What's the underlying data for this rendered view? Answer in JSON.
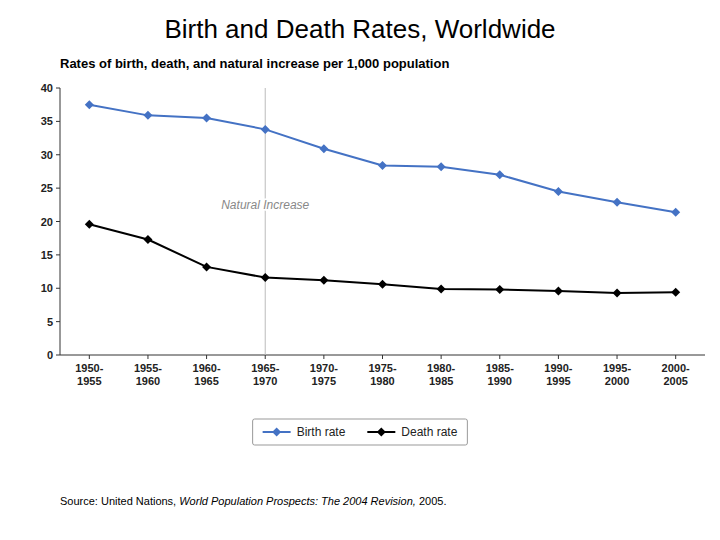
{
  "chart_data": {
    "type": "line",
    "title": "Birth and Death Rates, Worldwide",
    "subtitle": "Rates of birth, death, and natural increase per 1,000 population",
    "source": [
      "Source: United Nations, ",
      "World Population Prospects: The 2004 Revision,",
      " 2005."
    ],
    "categories": [
      "1950-\n1955",
      "1955-\n1960",
      "1960-\n1965",
      "1965-\n1970",
      "1970-\n1975",
      "1975-\n1980",
      "1980-\n1985",
      "1985-\n1990",
      "1990-\n1995",
      "1995-\n2000",
      "2000-\n2005"
    ],
    "series": [
      {
        "name": "Birth rate",
        "color": "#4472C4",
        "marker": "diamond",
        "values": [
          37.5,
          35.9,
          35.5,
          33.8,
          30.9,
          28.4,
          28.2,
          27.0,
          24.5,
          22.9,
          21.4
        ]
      },
      {
        "name": "Death rate",
        "color": "#000000",
        "marker": "diamond",
        "values": [
          19.6,
          17.3,
          13.2,
          11.6,
          11.2,
          10.6,
          9.9,
          9.8,
          9.6,
          9.3,
          9.4
        ]
      }
    ],
    "annotations": [
      {
        "text": "Natural Increase",
        "x": "1965-\n1970",
        "y": 22.5
      }
    ],
    "ylim": [
      0,
      40
    ],
    "yticks": [
      0,
      5,
      10,
      15,
      20,
      25,
      30,
      35,
      40
    ],
    "grid": false,
    "legend": "bottom"
  }
}
